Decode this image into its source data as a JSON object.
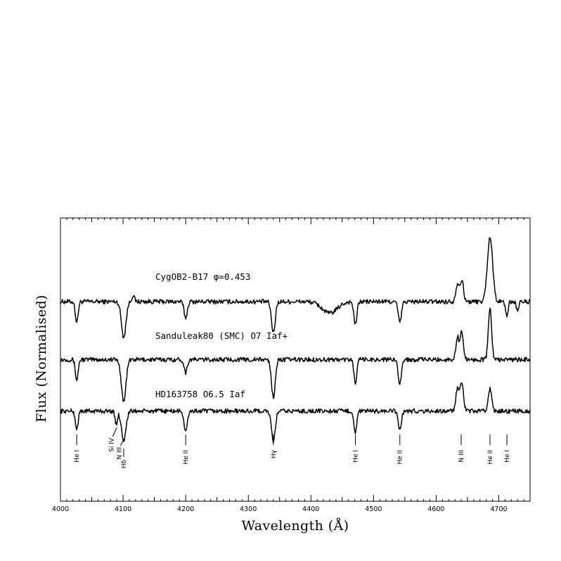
{
  "chart_data": {
    "type": "line",
    "xlabel": "Wavelength (Å)",
    "ylabel": "Flux (Normalised)",
    "xlim": [
      4000,
      4750
    ],
    "ylim": [
      0,
      4.4
    ],
    "xticks": [
      4000,
      4100,
      4200,
      4300,
      4400,
      4500,
      4600,
      4700
    ],
    "grid": false,
    "series": [
      {
        "name": "CygOB2-B17 φ=0.453",
        "continuum": 3.1,
        "features": [
          {
            "w": 4026,
            "d": -0.32,
            "s": 2.2
          },
          {
            "w": 4101,
            "d": -0.55,
            "s": 3.6
          },
          {
            "w": 4116,
            "d": 0.1,
            "s": 2.0
          },
          {
            "w": 4200,
            "d": -0.25,
            "s": 2.6
          },
          {
            "w": 4340,
            "d": -0.48,
            "s": 3.0
          },
          {
            "w": 4430,
            "d": -0.18,
            "s": 12.0
          },
          {
            "w": 4471,
            "d": -0.36,
            "s": 2.4
          },
          {
            "w": 4542,
            "d": -0.32,
            "s": 2.6
          },
          {
            "w": 4634,
            "d": 0.28,
            "s": 2.6
          },
          {
            "w": 4641,
            "d": 0.34,
            "s": 2.6
          },
          {
            "w": 4686,
            "d": 1.0,
            "s": 4.2
          },
          {
            "w": 4713,
            "d": -0.22,
            "s": 2.0
          },
          {
            "w": 4730,
            "d": -0.13,
            "s": 2.0
          }
        ]
      },
      {
        "name": "Sanduleak80 (SMC) O7 Iaf+",
        "continuum": 2.2,
        "features": [
          {
            "w": 4026,
            "d": -0.32,
            "s": 2.2
          },
          {
            "w": 4101,
            "d": -0.65,
            "s": 3.6
          },
          {
            "w": 4200,
            "d": -0.2,
            "s": 2.4
          },
          {
            "w": 4340,
            "d": -0.58,
            "s": 3.0
          },
          {
            "w": 4471,
            "d": -0.35,
            "s": 2.4
          },
          {
            "w": 4542,
            "d": -0.36,
            "s": 2.6
          },
          {
            "w": 4634,
            "d": 0.36,
            "s": 2.4
          },
          {
            "w": 4641,
            "d": 0.45,
            "s": 2.4
          },
          {
            "w": 4686,
            "d": 0.8,
            "s": 2.6
          }
        ]
      },
      {
        "name": "HD163758 O6.5 Iaf",
        "continuum": 1.4,
        "features": [
          {
            "w": 4026,
            "d": -0.28,
            "s": 2.2
          },
          {
            "w": 4089,
            "d": -0.2,
            "s": 2.0
          },
          {
            "w": 4101,
            "d": -0.45,
            "s": 3.6
          },
          {
            "w": 4200,
            "d": -0.33,
            "s": 2.6
          },
          {
            "w": 4340,
            "d": -0.48,
            "s": 3.0
          },
          {
            "w": 4471,
            "d": -0.32,
            "s": 2.4
          },
          {
            "w": 4542,
            "d": -0.28,
            "s": 2.6
          },
          {
            "w": 4634,
            "d": 0.34,
            "s": 2.6
          },
          {
            "w": 4641,
            "d": 0.44,
            "s": 2.6
          },
          {
            "w": 4686,
            "d": 0.36,
            "s": 2.6
          }
        ]
      }
    ],
    "annotations": [
      {
        "label": "He I",
        "w": 4026
      },
      {
        "label": "Si IV",
        "w": 4089
      },
      {
        "label": "N III",
        "w": 4097
      },
      {
        "label": "Hδ",
        "w": 4101
      },
      {
        "label": "He II",
        "w": 4200
      },
      {
        "label": "Hγ",
        "w": 4340
      },
      {
        "label": "He I",
        "w": 4471
      },
      {
        "label": "He II",
        "w": 4542
      },
      {
        "label": "N III",
        "w": 4640
      },
      {
        "label": "He II",
        "w": 4686
      },
      {
        "label": "He I",
        "w": 4713
      }
    ]
  }
}
